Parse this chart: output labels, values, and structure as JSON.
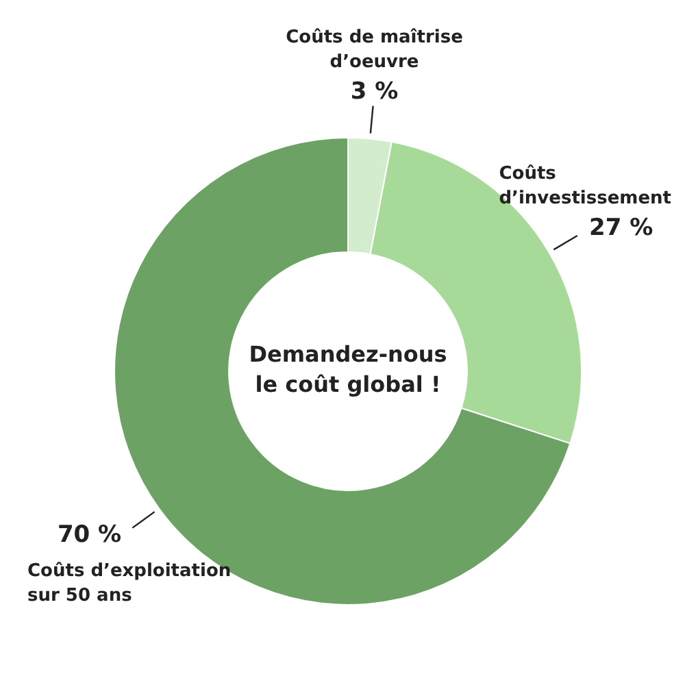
{
  "chart_data": {
    "type": "donut",
    "categories": [
      "Coûts de maîtrise d’oeuvre",
      "Coûts d’investissement",
      "Coûts d’exploitation sur 50 ans"
    ],
    "values": [
      3,
      27,
      70
    ],
    "value_labels": [
      "3 %",
      "27 %",
      "70 %"
    ],
    "colors": [
      "#d3ecce",
      "#a7da98",
      "#6ca263"
    ],
    "annotations": [
      "Demandez-nous le coût global !"
    ],
    "legend": false
  }
}
